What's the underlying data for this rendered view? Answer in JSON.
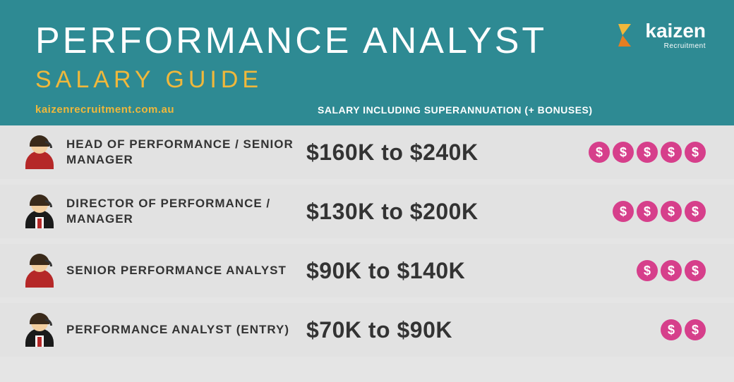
{
  "header": {
    "title": "PERFORMANCE ANALYST",
    "subtitle": "SALARY GUIDE",
    "bg_color": "#2e8a93",
    "title_color": "#ffffff",
    "subtitle_color": "#f0b83b",
    "title_fontsize": 52,
    "subtitle_fontsize": 34
  },
  "logo": {
    "name": "kaizen",
    "sub": "Recruitment",
    "mark_colors": [
      "#f0b83b",
      "#e67e22"
    ]
  },
  "subheader": {
    "url": "kaizenrecruitment.com.au",
    "column_label": "SALARY INCLUDING SUPERANNUATION (+ BONUSES)",
    "url_color": "#f0b83b",
    "label_color": "#ffffff"
  },
  "table": {
    "row_bg": "#e2e2e2",
    "text_color": "#333333",
    "gap_bg": "#ffffff",
    "role_fontsize": 17,
    "salary_fontsize": 32,
    "coin_color": "#d63f8b",
    "coin_text_color": "#ffffff",
    "coin_symbol": "$",
    "coin_size": 30,
    "rows": [
      {
        "avatar": "female",
        "role": "HEAD OF PERFORMANCE / SENIOR MANAGER",
        "salary": "$160K to $240K",
        "coins": 5
      },
      {
        "avatar": "male",
        "role": "DIRECTOR OF PERFORMANCE / MANAGER",
        "salary": "$130K to $200K",
        "coins": 4
      },
      {
        "avatar": "female",
        "role": "SENIOR PERFORMANCE ANALYST",
        "salary": "$90K to $140K",
        "coins": 3
      },
      {
        "avatar": "male",
        "role": "PERFORMANCE ANALYST (ENTRY)",
        "salary": "$70K to $90K",
        "coins": 2
      }
    ]
  }
}
